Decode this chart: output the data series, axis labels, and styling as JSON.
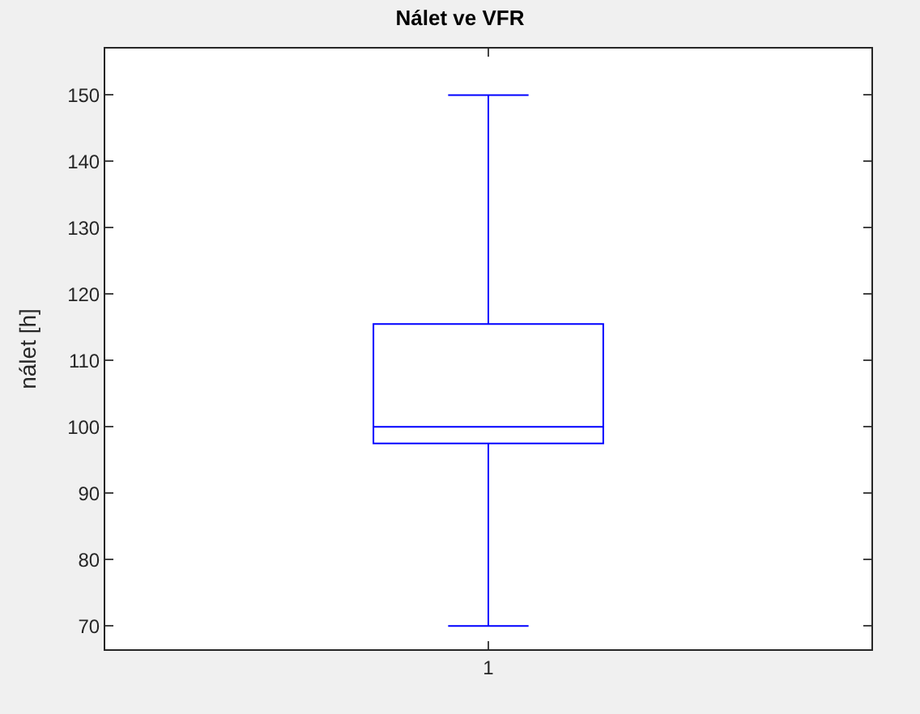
{
  "chart_data": {
    "type": "box",
    "title": "Nálet ve VFR",
    "ylabel": "nálet [h]",
    "categories": [
      "1"
    ],
    "series": [
      {
        "color": "#0000ff",
        "boxes": [
          {
            "low": 70,
            "q1": 97.5,
            "median": 100,
            "q3": 115.5,
            "high": 150
          }
        ]
      }
    ],
    "ylim": [
      66.5,
      157
    ],
    "yticks": [
      70,
      80,
      90,
      100,
      110,
      120,
      130,
      140,
      150
    ]
  }
}
